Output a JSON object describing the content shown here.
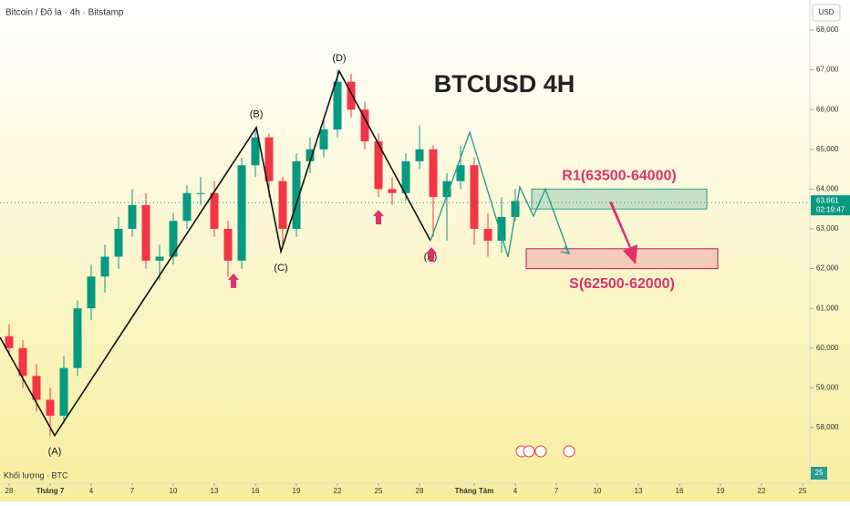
{
  "chart_data": {
    "type": "candlestick",
    "title": "Bitcoin / Đô la · 4h · Bitstamp",
    "headline": "BTCUSD 4H",
    "currency": "USD",
    "volume_label": "Khối lượng · BTC",
    "volume_badge": "25",
    "xlim": [
      -0.667,
      58.533
    ],
    "ylim": [
      57060,
      68757
    ],
    "xticks": [
      {
        "value": 0,
        "label": "28"
      },
      {
        "value": 3,
        "label": "Tháng 7"
      },
      {
        "value": 6,
        "label": "4"
      },
      {
        "value": 9,
        "label": "7"
      },
      {
        "value": 12,
        "label": "10"
      },
      {
        "value": 15,
        "label": "13"
      },
      {
        "value": 18,
        "label": "16"
      },
      {
        "value": 21,
        "label": "19"
      },
      {
        "value": 24,
        "label": "22"
      },
      {
        "value": 27,
        "label": "25"
      },
      {
        "value": 30,
        "label": "28"
      },
      {
        "value": 34,
        "label": "Tháng Tám"
      },
      {
        "value": 37,
        "label": "4"
      },
      {
        "value": 40,
        "label": "7"
      },
      {
        "value": 43,
        "label": "10"
      },
      {
        "value": 46,
        "label": "13"
      },
      {
        "value": 49,
        "label": "16"
      },
      {
        "value": 52,
        "label": "19"
      },
      {
        "value": 55,
        "label": "22"
      },
      {
        "value": 58,
        "label": "25"
      }
    ],
    "yticks": [
      {
        "value": 58000,
        "label": "58,000"
      },
      {
        "value": 59000,
        "label": "59,000"
      },
      {
        "value": 60000,
        "label": "60,000"
      },
      {
        "value": 61000,
        "label": "61,000"
      },
      {
        "value": 62000,
        "label": "62,000"
      },
      {
        "value": 63000,
        "label": "63,000"
      },
      {
        "value": 64000,
        "label": "64,000"
      },
      {
        "value": 65000,
        "label": "65,000"
      },
      {
        "value": 66000,
        "label": "66,000"
      },
      {
        "value": 67000,
        "label": "67,000"
      },
      {
        "value": 68000,
        "label": "68,000"
      }
    ],
    "up_color": "#089981",
    "down_color": "#f23645",
    "x": [
      0,
      1,
      2,
      3,
      4,
      5,
      6,
      7,
      8,
      9,
      10,
      11,
      12,
      13,
      14,
      15,
      16,
      17,
      18,
      19,
      20,
      21,
      22,
      23,
      24,
      25,
      26,
      27,
      28,
      29,
      30,
      31,
      32,
      33,
      34,
      35,
      36,
      37
    ],
    "open": [
      60300,
      60000,
      59300,
      58700,
      58300,
      59500,
      61000,
      61800,
      62300,
      63000,
      63600,
      62200,
      62300,
      63200,
      63900,
      63900,
      63000,
      62200,
      64600,
      65300,
      64200,
      63000,
      64700,
      65000,
      65500,
      66700,
      66000,
      65200,
      64000,
      63900,
      64700,
      65000,
      63800,
      64200,
      64600,
      63000,
      62700,
      63300
    ],
    "high": [
      60600,
      60200,
      59600,
      59000,
      59800,
      61200,
      62100,
      62600,
      63300,
      64000,
      63900,
      62600,
      63400,
      64100,
      64300,
      64200,
      63200,
      64800,
      65500,
      65400,
      64300,
      64900,
      65300,
      65800,
      67000,
      66900,
      66200,
      65400,
      64300,
      64900,
      65600,
      65100,
      64400,
      65100,
      64800,
      63400,
      63800,
      64000
    ],
    "low": [
      59800,
      59000,
      58400,
      57800,
      58100,
      59300,
      60700,
      61400,
      62000,
      62800,
      62000,
      61700,
      62100,
      63000,
      63600,
      62800,
      61800,
      62000,
      64300,
      63800,
      62500,
      62800,
      64400,
      64800,
      65300,
      65800,
      65000,
      63800,
      63600,
      63700,
      64500,
      62800,
      62700,
      64000,
      62600,
      62300,
      62400,
      63200
    ],
    "close": [
      60000,
      59300,
      58700,
      58300,
      59500,
      61000,
      61800,
      62300,
      63000,
      63600,
      62200,
      62300,
      63200,
      63900,
      63900,
      63000,
      62200,
      64600,
      65300,
      64200,
      63000,
      64700,
      65000,
      65500,
      66700,
      66000,
      65200,
      64000,
      63900,
      64700,
      65000,
      63800,
      64200,
      64600,
      63000,
      62700,
      63300,
      63700
    ],
    "current_price": {
      "value": 63661,
      "label": "63,661"
    },
    "countdown": "02:19:47",
    "waves": {
      "color": "#111111",
      "x": [
        -0.667,
        3.33,
        18.07,
        19.87,
        24.13,
        30.8
      ],
      "values": [
        60270,
        57800,
        65550,
        62430,
        66970,
        62700
      ],
      "labels": [
        null,
        "(A)",
        "(B)",
        "(C)",
        "(D)",
        "(E)"
      ]
    },
    "projection": {
      "color": "#2a9d8f",
      "x": [
        30.8,
        33.67,
        36.47,
        37.33,
        38.33,
        39.2,
        40.93
      ],
      "values": [
        62700,
        65430,
        62290,
        64050,
        63320,
        64000,
        62380
      ]
    },
    "resistance": {
      "label": "R1(63500-64000)",
      "low": 63500,
      "high": 64000,
      "x": [
        38.2,
        51
      ]
    },
    "support": {
      "label": "S(62500-62000)",
      "low": 62000,
      "high": 62500,
      "x": [
        37.8,
        51.8
      ]
    },
    "markers": {
      "x": [
        16.4,
        27,
        30.87
      ],
      "values": [
        61880,
        63480,
        62540
      ]
    }
  }
}
